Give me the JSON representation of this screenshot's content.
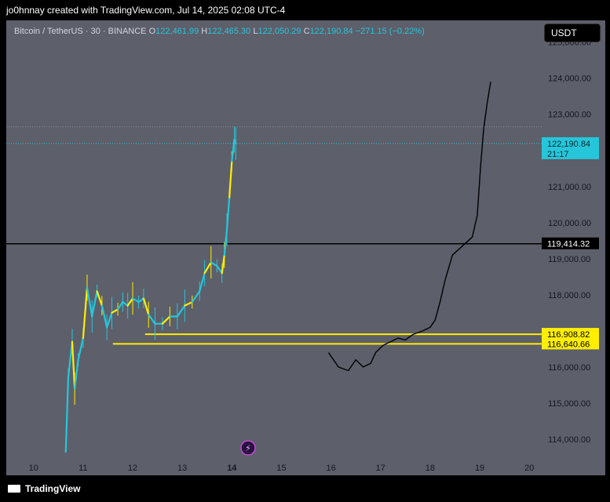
{
  "header": {
    "credit": "jo0hnnay created with TradingView.com, Jul 14, 2025 02:08 UTC-4"
  },
  "legend": {
    "symbol": "Bitcoin / TetherUS · 30 · BINANCE",
    "o_label": "O",
    "o": "122,461.99",
    "h_label": "H",
    "h": "122,465.30",
    "l_label": "L",
    "l": "122,050.29",
    "c_label": "C",
    "c": "122,190.84",
    "change": "−271.15 (−0.22%)"
  },
  "currency_button": "USDT",
  "footer": {
    "brand": "TradingView"
  },
  "colors": {
    "bg": "#5d5f6b",
    "candle": "#26c6da",
    "yellow": "#ffee00",
    "price_tag": "#26c6da"
  },
  "chart_data": {
    "type": "line",
    "title": "",
    "xlabel": "",
    "ylabel": "",
    "x_ticks": [
      "10",
      "11",
      "12",
      "13",
      "14",
      "15",
      "16",
      "17",
      "18",
      "19",
      "20"
    ],
    "x_range": [
      9.45,
      20.25
    ],
    "y_range": [
      113500,
      125600
    ],
    "y_ticks": [
      "114,000.00",
      "115,000.00",
      "116,000.00",
      "117,000.00",
      "118,000.00",
      "119,000.00",
      "120,000.00",
      "121,000.00",
      "122,000.00",
      "123,000.00",
      "124,000.00",
      "125,000.00"
    ],
    "y_tick_values": [
      114000,
      115000,
      116000,
      117000,
      118000,
      119000,
      120000,
      121000,
      122000,
      123000,
      124000,
      125000
    ],
    "price_series": [
      [
        10.65,
        113650
      ],
      [
        10.7,
        115700
      ],
      [
        10.78,
        116700
      ],
      [
        10.83,
        115400
      ],
      [
        10.9,
        116200
      ],
      [
        11.0,
        116800
      ],
      [
        11.08,
        118200
      ],
      [
        11.18,
        117400
      ],
      [
        11.28,
        118100
      ],
      [
        11.38,
        117700
      ],
      [
        11.48,
        117100
      ],
      [
        11.58,
        117500
      ],
      [
        11.7,
        117600
      ],
      [
        11.8,
        117800
      ],
      [
        11.9,
        117700
      ],
      [
        12.0,
        117900
      ],
      [
        12.12,
        117800
      ],
      [
        12.22,
        117900
      ],
      [
        12.32,
        117450
      ],
      [
        12.45,
        117200
      ],
      [
        12.6,
        117200
      ],
      [
        12.75,
        117400
      ],
      [
        12.9,
        117400
      ],
      [
        13.05,
        117700
      ],
      [
        13.2,
        117800
      ],
      [
        13.35,
        118100
      ],
      [
        13.45,
        118600
      ],
      [
        13.58,
        118900
      ],
      [
        13.7,
        118800
      ],
      [
        13.8,
        118600
      ],
      [
        13.85,
        119100
      ],
      [
        13.9,
        119800
      ],
      [
        13.95,
        120700
      ],
      [
        14.0,
        121700
      ],
      [
        14.05,
        122300
      ],
      [
        14.08,
        122190
      ]
    ],
    "projection": [
      [
        15.95,
        116400
      ],
      [
        16.15,
        116000
      ],
      [
        16.35,
        115900
      ],
      [
        16.5,
        116200
      ],
      [
        16.65,
        116000
      ],
      [
        16.8,
        116100
      ],
      [
        16.9,
        116400
      ],
      [
        17.05,
        116600
      ],
      [
        17.2,
        116700
      ],
      [
        17.35,
        116800
      ],
      [
        17.5,
        116750
      ],
      [
        17.65,
        116900
      ],
      [
        17.85,
        117000
      ],
      [
        18.0,
        117100
      ],
      [
        18.1,
        117300
      ],
      [
        18.2,
        117800
      ],
      [
        18.3,
        118400
      ],
      [
        18.45,
        119100
      ],
      [
        18.65,
        119350
      ],
      [
        18.85,
        119600
      ],
      [
        18.95,
        120200
      ],
      [
        19.02,
        121600
      ],
      [
        19.08,
        122600
      ],
      [
        19.15,
        123300
      ],
      [
        19.22,
        123900
      ]
    ],
    "price_line": {
      "label": "122,190.84",
      "countdown": "21:17",
      "value": 122190.84
    },
    "black_line": {
      "label": "119,414.32",
      "value": 119414.32
    },
    "yellow_line_1": {
      "label": "116,908.82",
      "value": 116908.82,
      "start": 12.25
    },
    "yellow_line_2": {
      "label": "116,640.66",
      "value": 116640.66,
      "start": 11.6
    },
    "high_dotted": {
      "value": 122650
    }
  }
}
